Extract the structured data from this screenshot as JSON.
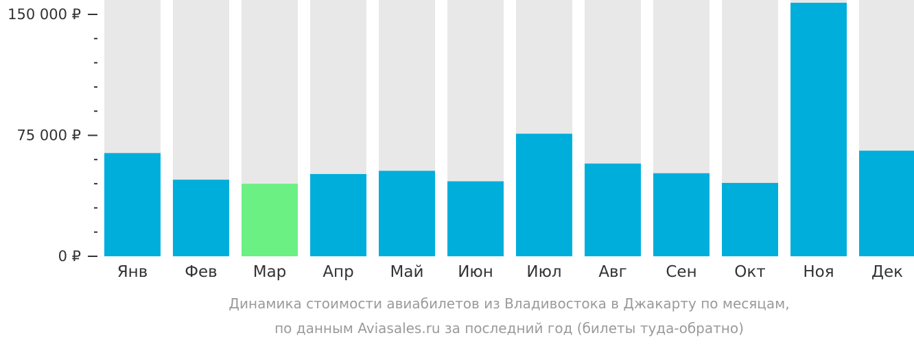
{
  "chart_data": {
    "type": "bar",
    "categories": [
      "Янв",
      "Фев",
      "Мар",
      "Апр",
      "Май",
      "Июн",
      "Июл",
      "Авг",
      "Сен",
      "Окт",
      "Ноя",
      "Дек"
    ],
    "values": [
      64000,
      47500,
      45000,
      51000,
      53000,
      46500,
      76000,
      57500,
      51500,
      45500,
      157500,
      65500
    ],
    "ylim": [
      0,
      157500
    ],
    "yticks": [
      0,
      75000,
      150000
    ],
    "ytick_labels": [
      "0 ₽",
      "75 000 ₽",
      "150 000 ₽"
    ],
    "minor_ticks_per_major": 5,
    "highlight_index": 2,
    "colors": {
      "bar": "#00aedb",
      "highlight": "#6bf084",
      "track": "#e8e8e8",
      "axis": "#333333"
    },
    "caption_lines": [
      "Динамика стоимости авиабилетов из Владивостока в Джакарту по месяцам,",
      "по данным Aviasales.ru за последний год (билеты туда-обратно)"
    ]
  }
}
